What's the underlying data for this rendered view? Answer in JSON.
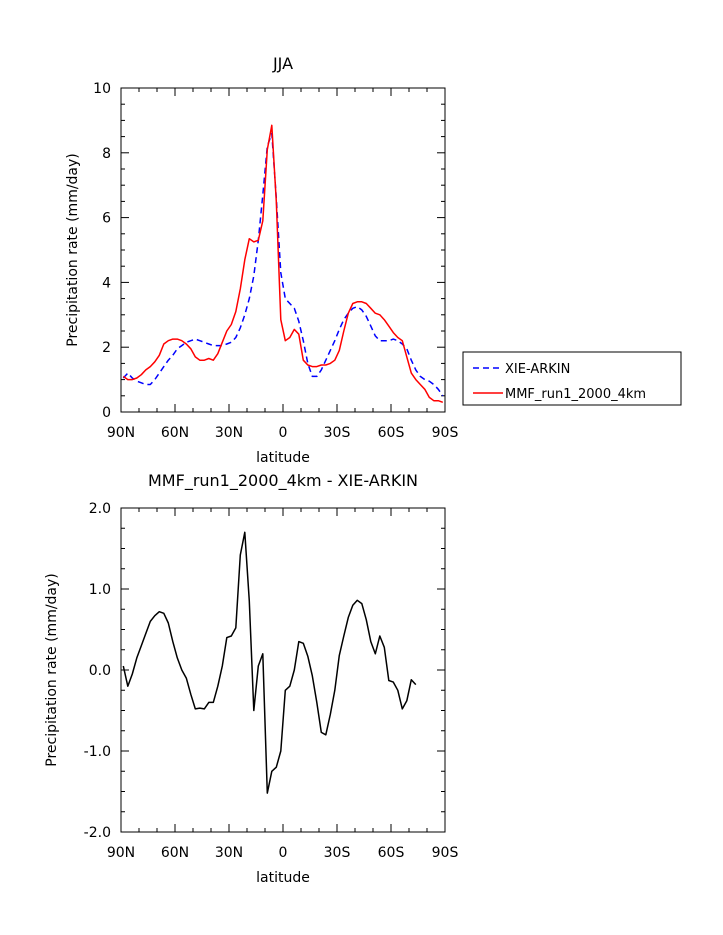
{
  "chart_data": [
    {
      "type": "line",
      "title": "JJA",
      "xlabel": "latitude",
      "ylabel": "Precipitation rate (mm/day)",
      "xlim": [
        90,
        -90
      ],
      "ylim": [
        0,
        10
      ],
      "x_ticks": [
        {
          "value": 90,
          "label": "90N"
        },
        {
          "value": 60,
          "label": "60N"
        },
        {
          "value": 30,
          "label": "30N"
        },
        {
          "value": 0,
          "label": "0"
        },
        {
          "value": -30,
          "label": "30S"
        },
        {
          "value": -60,
          "label": "60S"
        },
        {
          "value": -90,
          "label": "90S"
        }
      ],
      "y_ticks": [
        {
          "value": 0,
          "label": "0"
        },
        {
          "value": 2,
          "label": "2"
        },
        {
          "value": 4,
          "label": "4"
        },
        {
          "value": 6,
          "label": "6"
        },
        {
          "value": 8,
          "label": "8"
        },
        {
          "value": 10,
          "label": "10"
        }
      ],
      "legend": "right",
      "series": [
        {
          "name": "XIE-ARKIN",
          "color": "#0000ff",
          "dash": "dashed",
          "points": [
            [
              88.75,
              1.05
            ],
            [
              86.25,
              1.2
            ],
            [
              83.75,
              1.05
            ],
            [
              81.25,
              0.95
            ],
            [
              78.75,
              0.9
            ],
            [
              76.25,
              0.85
            ],
            [
              73.75,
              0.85
            ],
            [
              71.25,
              1.0
            ],
            [
              68.75,
              1.2
            ],
            [
              66.25,
              1.4
            ],
            [
              63.75,
              1.6
            ],
            [
              61.25,
              1.75
            ],
            [
              58.75,
              1.95
            ],
            [
              56.25,
              2.05
            ],
            [
              53.75,
              2.15
            ],
            [
              51.25,
              2.2
            ],
            [
              48.75,
              2.25
            ],
            [
              46.25,
              2.2
            ],
            [
              43.75,
              2.15
            ],
            [
              41.25,
              2.1
            ],
            [
              38.75,
              2.05
            ],
            [
              36.25,
              2.05
            ],
            [
              33.75,
              2.05
            ],
            [
              31.25,
              2.1
            ],
            [
              28.75,
              2.15
            ],
            [
              26.25,
              2.3
            ],
            [
              23.75,
              2.6
            ],
            [
              21.25,
              3.0
            ],
            [
              18.75,
              3.5
            ],
            [
              16.25,
              4.2
            ],
            [
              13.75,
              5.3
            ],
            [
              11.25,
              6.7
            ],
            [
              8.75,
              8.2
            ],
            [
              6.25,
              8.6
            ],
            [
              3.75,
              6.6
            ],
            [
              1.25,
              4.3
            ],
            [
              -1.25,
              3.5
            ],
            [
              -3.75,
              3.35
            ],
            [
              -6.25,
              3.2
            ],
            [
              -8.75,
              2.8
            ],
            [
              -11.25,
              2.2
            ],
            [
              -13.75,
              1.5
            ],
            [
              -16.25,
              1.1
            ],
            [
              -18.75,
              1.1
            ],
            [
              -21.25,
              1.3
            ],
            [
              -23.75,
              1.6
            ],
            [
              -26.25,
              1.9
            ],
            [
              -28.75,
              2.2
            ],
            [
              -31.25,
              2.55
            ],
            [
              -33.75,
              2.85
            ],
            [
              -36.25,
              3.05
            ],
            [
              -38.75,
              3.2
            ],
            [
              -41.25,
              3.25
            ],
            [
              -43.75,
              3.15
            ],
            [
              -46.25,
              2.95
            ],
            [
              -48.75,
              2.65
            ],
            [
              -51.25,
              2.35
            ],
            [
              -53.75,
              2.2
            ],
            [
              -56.25,
              2.2
            ],
            [
              -58.75,
              2.2
            ],
            [
              -61.25,
              2.25
            ],
            [
              -63.75,
              2.2
            ],
            [
              -66.25,
              2.1
            ],
            [
              -68.75,
              1.95
            ],
            [
              -71.25,
              1.6
            ],
            [
              -73.75,
              1.3
            ],
            [
              -76.25,
              1.1
            ],
            [
              -78.75,
              1.0
            ],
            [
              -81.25,
              0.95
            ],
            [
              -83.75,
              0.85
            ],
            [
              -86.25,
              0.7
            ],
            [
              -88.75,
              0.5
            ]
          ]
        },
        {
          "name": "MMF_run1_2000_4km",
          "color": "#ff0000",
          "dash": "solid",
          "points": [
            [
              88.75,
              1.1
            ],
            [
              86.25,
              1.0
            ],
            [
              83.75,
              1.0
            ],
            [
              81.25,
              1.05
            ],
            [
              78.75,
              1.15
            ],
            [
              76.25,
              1.3
            ],
            [
              73.75,
              1.4
            ],
            [
              71.25,
              1.55
            ],
            [
              68.75,
              1.75
            ],
            [
              66.25,
              2.1
            ],
            [
              63.75,
              2.2
            ],
            [
              61.25,
              2.25
            ],
            [
              58.75,
              2.25
            ],
            [
              56.25,
              2.2
            ],
            [
              53.75,
              2.1
            ],
            [
              51.25,
              1.95
            ],
            [
              48.75,
              1.7
            ],
            [
              46.25,
              1.6
            ],
            [
              43.75,
              1.6
            ],
            [
              41.25,
              1.65
            ],
            [
              38.75,
              1.6
            ],
            [
              36.25,
              1.8
            ],
            [
              33.75,
              2.15
            ],
            [
              31.25,
              2.5
            ],
            [
              28.75,
              2.7
            ],
            [
              26.25,
              3.1
            ],
            [
              23.75,
              3.8
            ],
            [
              21.25,
              4.7
            ],
            [
              18.75,
              5.35
            ],
            [
              16.25,
              5.25
            ],
            [
              13.75,
              5.3
            ],
            [
              11.25,
              5.9
            ],
            [
              8.75,
              8.1
            ],
            [
              6.25,
              8.85
            ],
            [
              3.75,
              6.5
            ],
            [
              1.25,
              2.85
            ],
            [
              -1.25,
              2.2
            ],
            [
              -3.75,
              2.3
            ],
            [
              -6.25,
              2.55
            ],
            [
              -8.75,
              2.4
            ],
            [
              -11.25,
              1.6
            ],
            [
              -13.75,
              1.45
            ],
            [
              -16.25,
              1.4
            ],
            [
              -18.75,
              1.4
            ],
            [
              -21.25,
              1.45
            ],
            [
              -23.75,
              1.45
            ],
            [
              -26.25,
              1.5
            ],
            [
              -28.75,
              1.6
            ],
            [
              -31.25,
              1.9
            ],
            [
              -33.75,
              2.5
            ],
            [
              -36.25,
              3.05
            ],
            [
              -38.75,
              3.35
            ],
            [
              -41.25,
              3.4
            ],
            [
              -43.75,
              3.4
            ],
            [
              -46.25,
              3.35
            ],
            [
              -48.75,
              3.2
            ],
            [
              -51.25,
              3.05
            ],
            [
              -53.75,
              3.0
            ],
            [
              -56.25,
              2.85
            ],
            [
              -58.75,
              2.65
            ],
            [
              -61.25,
              2.45
            ],
            [
              -63.75,
              2.3
            ],
            [
              -66.25,
              2.2
            ],
            [
              -68.75,
              1.7
            ],
            [
              -71.25,
              1.2
            ],
            [
              -73.75,
              1.0
            ],
            [
              -76.25,
              0.85
            ],
            [
              -78.75,
              0.7
            ],
            [
              -81.25,
              0.45
            ],
            [
              -83.75,
              0.35
            ],
            [
              -86.25,
              0.35
            ],
            [
              -88.75,
              0.3
            ]
          ]
        }
      ]
    },
    {
      "type": "line",
      "title": "MMF_run1_2000_4km - XIE-ARKIN",
      "xlabel": "latitude",
      "ylabel": "Precipitation rate (mm/day)",
      "xlim": [
        90,
        -90
      ],
      "ylim": [
        -2,
        2
      ],
      "x_ticks": [
        {
          "value": 90,
          "label": "90N"
        },
        {
          "value": 60,
          "label": "60N"
        },
        {
          "value": 30,
          "label": "30N"
        },
        {
          "value": 0,
          "label": "0"
        },
        {
          "value": -30,
          "label": "30S"
        },
        {
          "value": -60,
          "label": "60S"
        },
        {
          "value": -90,
          "label": "90S"
        }
      ],
      "y_ticks": [
        {
          "value": -2,
          "label": "-2.0"
        },
        {
          "value": -1,
          "label": "-1.0"
        },
        {
          "value": 0,
          "label": "0.0"
        },
        {
          "value": 1,
          "label": "1.0"
        },
        {
          "value": 2,
          "label": "2.0"
        }
      ],
      "series": [
        {
          "color": "#000000",
          "dash": "solid",
          "points": [
            [
              88.75,
              0.05
            ],
            [
              86.25,
              -0.2
            ],
            [
              83.75,
              -0.05
            ],
            [
              81.25,
              0.15
            ],
            [
              78.75,
              0.3
            ],
            [
              76.25,
              0.45
            ],
            [
              73.75,
              0.6
            ],
            [
              71.25,
              0.67
            ],
            [
              68.75,
              0.72
            ],
            [
              66.25,
              0.7
            ],
            [
              63.75,
              0.58
            ],
            [
              61.25,
              0.35
            ],
            [
              58.75,
              0.15
            ],
            [
              56.25,
              0.0
            ],
            [
              53.75,
              -0.1
            ],
            [
              51.25,
              -0.3
            ],
            [
              48.75,
              -0.48
            ],
            [
              46.25,
              -0.47
            ],
            [
              43.75,
              -0.48
            ],
            [
              41.25,
              -0.4
            ],
            [
              38.75,
              -0.4
            ],
            [
              36.25,
              -0.2
            ],
            [
              33.75,
              0.05
            ],
            [
              31.25,
              0.4
            ],
            [
              28.75,
              0.42
            ],
            [
              26.25,
              0.52
            ],
            [
              23.75,
              1.42
            ],
            [
              21.25,
              1.7
            ],
            [
              18.75,
              0.85
            ],
            [
              16.25,
              -0.5
            ],
            [
              13.75,
              0.05
            ],
            [
              11.25,
              0.2
            ],
            [
              8.75,
              -1.52
            ],
            [
              6.25,
              -1.25
            ],
            [
              3.75,
              -1.2
            ],
            [
              1.25,
              -1.0
            ],
            [
              -1.25,
              -0.25
            ],
            [
              -3.75,
              -0.2
            ],
            [
              -6.25,
              0.0
            ],
            [
              -8.75,
              0.35
            ],
            [
              -11.25,
              0.33
            ],
            [
              -13.75,
              0.17
            ],
            [
              -16.25,
              -0.07
            ],
            [
              -18.75,
              -0.4
            ],
            [
              -21.25,
              -0.77
            ],
            [
              -23.75,
              -0.8
            ],
            [
              -26.25,
              -0.55
            ],
            [
              -28.75,
              -0.25
            ],
            [
              -31.25,
              0.18
            ],
            [
              -33.75,
              0.42
            ],
            [
              -36.25,
              0.65
            ],
            [
              -38.75,
              0.8
            ],
            [
              -41.25,
              0.86
            ],
            [
              -43.75,
              0.82
            ],
            [
              -46.25,
              0.62
            ],
            [
              -48.75,
              0.35
            ],
            [
              -51.25,
              0.2
            ],
            [
              -53.75,
              0.42
            ],
            [
              -56.25,
              0.28
            ],
            [
              -58.75,
              -0.13
            ],
            [
              -61.25,
              -0.15
            ],
            [
              -63.75,
              -0.25
            ],
            [
              -66.25,
              -0.48
            ],
            [
              -68.75,
              -0.38
            ],
            [
              -71.25,
              -0.12
            ],
            [
              -73.75,
              -0.18
            ]
          ]
        }
      ]
    }
  ]
}
